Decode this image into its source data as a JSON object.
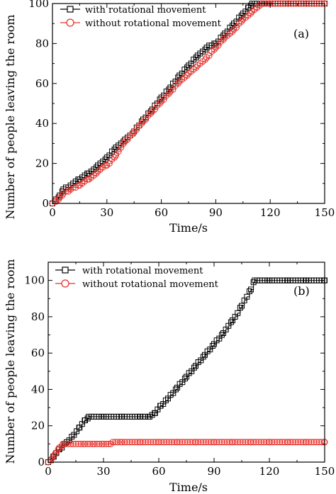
{
  "colors": {
    "with": "#000000",
    "without": "#e8312a"
  },
  "chart_data": [
    {
      "type": "line",
      "panel_label": "(a)",
      "xlabel": "Time/s",
      "ylabel": "Number of people leaving the room",
      "xlim": [
        0,
        150
      ],
      "ylim": [
        0,
        100
      ],
      "x_ticks": [
        "0",
        "30",
        "60",
        "90",
        "120",
        "150"
      ],
      "y_ticks": [
        "0",
        "20",
        "40",
        "60",
        "80",
        "100"
      ],
      "legend_position": "top-left",
      "series": [
        {
          "name": "with rotational movement",
          "marker": "square",
          "points": [
            [
              0,
              0
            ],
            [
              2,
              2
            ],
            [
              4,
              4
            ],
            [
              6,
              7
            ],
            [
              10,
              9
            ],
            [
              15,
              12
            ],
            [
              20,
              15
            ],
            [
              25,
              19
            ],
            [
              30,
              23
            ],
            [
              35,
              28
            ],
            [
              40,
              32
            ],
            [
              45,
              36
            ],
            [
              50,
              42
            ],
            [
              55,
              47
            ],
            [
              60,
              53
            ],
            [
              65,
              58
            ],
            [
              70,
              64
            ],
            [
              75,
              69
            ],
            [
              80,
              74
            ],
            [
              85,
              78
            ],
            [
              90,
              80
            ],
            [
              95,
              85
            ],
            [
              100,
              90
            ],
            [
              105,
              95
            ],
            [
              108,
              98
            ],
            [
              110,
              100
            ],
            [
              120,
              100
            ],
            [
              130,
              100
            ],
            [
              140,
              100
            ],
            [
              150,
              100
            ]
          ]
        },
        {
          "name": "without rotational movement",
          "marker": "circle",
          "points": [
            [
              0,
              0
            ],
            [
              2,
              1
            ],
            [
              4,
              3
            ],
            [
              6,
              5
            ],
            [
              10,
              7
            ],
            [
              15,
              9
            ],
            [
              20,
              12
            ],
            [
              25,
              16
            ],
            [
              30,
              19
            ],
            [
              35,
              24
            ],
            [
              40,
              31
            ],
            [
              45,
              36
            ],
            [
              50,
              41
            ],
            [
              55,
              46
            ],
            [
              60,
              51
            ],
            [
              65,
              56
            ],
            [
              70,
              61
            ],
            [
              75,
              65
            ],
            [
              80,
              69
            ],
            [
              85,
              73
            ],
            [
              90,
              78
            ],
            [
              95,
              83
            ],
            [
              100,
              87
            ],
            [
              105,
              92
            ],
            [
              110,
              96
            ],
            [
              115,
              100
            ],
            [
              120,
              100
            ],
            [
              130,
              100
            ],
            [
              140,
              100
            ],
            [
              150,
              100
            ]
          ]
        }
      ]
    },
    {
      "type": "line",
      "panel_label": "(b)",
      "xlabel": "Time/s",
      "ylabel": "Number of people leaving the room",
      "xlim": [
        0,
        150
      ],
      "ylim": [
        0,
        110
      ],
      "x_ticks": [
        "0",
        "30",
        "60",
        "90",
        "120",
        "150"
      ],
      "y_ticks": [
        "0",
        "20",
        "40",
        "60",
        "80",
        "100"
      ],
      "legend_position": "top-left",
      "series": [
        {
          "name": "with rotational movement",
          "marker": "square",
          "points": [
            [
              0,
              0
            ],
            [
              3,
              3
            ],
            [
              6,
              7
            ],
            [
              10,
              11
            ],
            [
              14,
              15
            ],
            [
              17,
              19
            ],
            [
              20,
              23
            ],
            [
              22,
              25
            ],
            [
              30,
              25
            ],
            [
              40,
              25
            ],
            [
              50,
              25
            ],
            [
              55,
              25
            ],
            [
              58,
              27
            ],
            [
              61,
              31
            ],
            [
              65,
              35
            ],
            [
              70,
              41
            ],
            [
              75,
              47
            ],
            [
              80,
              53
            ],
            [
              85,
              59
            ],
            [
              90,
              65
            ],
            [
              95,
              71
            ],
            [
              100,
              78
            ],
            [
              105,
              86
            ],
            [
              110,
              95
            ],
            [
              112,
              100
            ],
            [
              120,
              100
            ],
            [
              130,
              100
            ],
            [
              140,
              100
            ],
            [
              150,
              100
            ]
          ]
        },
        {
          "name": "without rotational movement",
          "marker": "circle",
          "points": [
            [
              0,
              0
            ],
            [
              2,
              2
            ],
            [
              4,
              5
            ],
            [
              6,
              8
            ],
            [
              8,
              10
            ],
            [
              15,
              10
            ],
            [
              20,
              10
            ],
            [
              25,
              10
            ],
            [
              30,
              10
            ],
            [
              34,
              10
            ],
            [
              35,
              11
            ],
            [
              40,
              11
            ],
            [
              50,
              11
            ],
            [
              60,
              11
            ],
            [
              70,
              11
            ],
            [
              80,
              11
            ],
            [
              90,
              11
            ],
            [
              100,
              11
            ],
            [
              110,
              11
            ],
            [
              120,
              11
            ],
            [
              130,
              11
            ],
            [
              140,
              11
            ],
            [
              150,
              11
            ]
          ]
        }
      ]
    }
  ]
}
